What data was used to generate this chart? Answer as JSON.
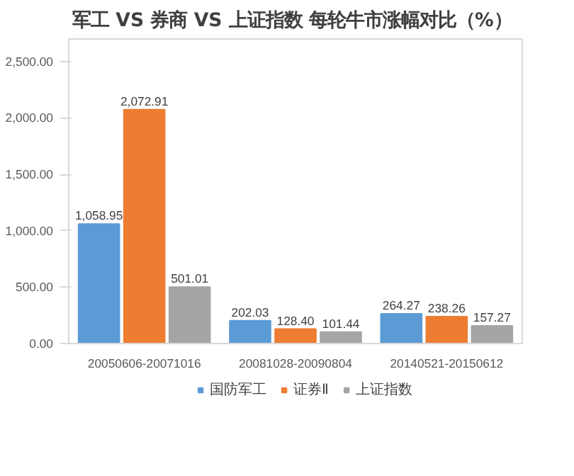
{
  "chart_data": {
    "type": "bar",
    "title": "军工 VS 券商 VS 上证指数  每轮牛市涨幅对比（%）",
    "categories": [
      "20050606-20071016",
      "20081028-20090804",
      "20140521-20150612"
    ],
    "series": [
      {
        "name": "国防军工",
        "color": "#5b9bd5",
        "values": [
          1058.95,
          202.03,
          264.27
        ],
        "value_labels": [
          "1,058.95",
          "202.03",
          "264.27"
        ]
      },
      {
        "name": "证券Ⅱ",
        "color": "#ed7d31",
        "values": [
          2072.91,
          128.4,
          238.26
        ],
        "value_labels": [
          "2,072.91",
          "128.40",
          "238.26"
        ]
      },
      {
        "name": "上证指数",
        "color": "#a5a5a5",
        "values": [
          501.01,
          101.44,
          157.27
        ],
        "value_labels": [
          "501.01",
          "101.44",
          "157.27"
        ]
      }
    ],
    "ylim": [
      0,
      2700
    ],
    "yticks": [
      {
        "value": 0,
        "label": "0.00"
      },
      {
        "value": 500,
        "label": "500.00"
      },
      {
        "value": 1000,
        "label": "1,000.00"
      },
      {
        "value": 1500,
        "label": "1,500.00"
      },
      {
        "value": 2000,
        "label": "2,000.00"
      },
      {
        "value": 2500,
        "label": "2,500.00"
      }
    ],
    "legend": "bottom"
  }
}
